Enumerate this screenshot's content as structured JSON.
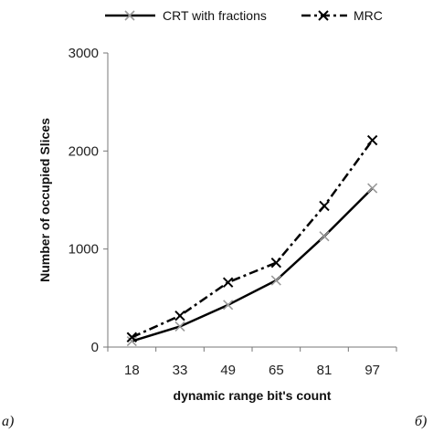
{
  "chart_data": {
    "type": "line",
    "x": [
      "18",
      "33",
      "49",
      "65",
      "81",
      "97"
    ],
    "series": [
      {
        "name": "CRT with fractions",
        "values": [
          60,
          210,
          430,
          680,
          1130,
          1620
        ],
        "line_style": "solid",
        "marker": "x",
        "marker_color": "#999999",
        "line_color": "#000000"
      },
      {
        "name": "MRC",
        "values": [
          100,
          320,
          660,
          860,
          1440,
          2110
        ],
        "line_style": "dash-dot",
        "marker": "x",
        "marker_color": "#000000",
        "line_color": "#000000"
      }
    ],
    "xlabel": "dynamic range bit's count",
    "ylabel": "Number of occupied Slices",
    "ylim": [
      0,
      3000
    ],
    "yticks": [
      "0",
      "1000",
      "2000",
      "3000"
    ],
    "grid": false,
    "legend_position": "top"
  },
  "corner_labels": {
    "left": "а)",
    "right": "б)"
  }
}
